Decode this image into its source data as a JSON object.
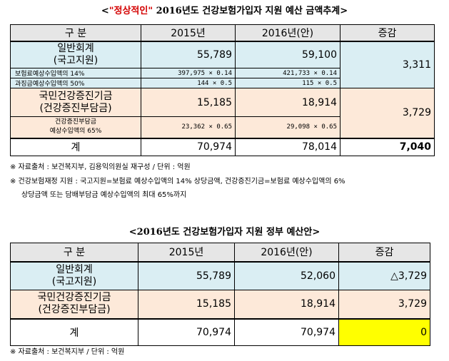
{
  "table1": {
    "title_open": "<",
    "title_red": "\"정상적인\"",
    "title_rest": " 2016년도 건강보험가입자 지원 예산 금액추계>",
    "headers": [
      "구 분",
      "2015년",
      "2016년(안)",
      "증감"
    ],
    "general_line1": "일반회계",
    "general_line2": "(국고지원)",
    "general_2015": "55,789",
    "general_2016": "59,100",
    "general_diff": "3,311",
    "sub1_label": "보험료예상수입액의 14%",
    "sub1_2015": "397,975 × 0.14",
    "sub1_2016": "421,733 × 0.14",
    "sub2_label": "과징금예상수입액의 50%",
    "sub2_2015": "144 × 0.5",
    "sub2_2016": "115 × 0.5",
    "fund_line1": "국민건강증진기금",
    "fund_line2": "(건강증진부담금)",
    "fund_2015": "15,185",
    "fund_2016": "18,914",
    "fund_diff": "3,729",
    "sub3_label1": "건강증진부담금",
    "sub3_label2": "예상수입액의 65%",
    "sub3_2015": "23,362 × 0.65",
    "sub3_2016": "29,098 × 0.65",
    "total_label": "계",
    "total_2015": "70,974",
    "total_2016": "78,014",
    "total_diff": "7,040"
  },
  "notes1": {
    "n1": "※ 자료출처 : 보건복지부, 김용익의원실 재구성 / 단위 : 억원",
    "n2": "※ 건강보험재정 지원 : 국고지원=보험료 예상수입액의 14% 상당금액, 건강증진기금=보험료 예상수입액의 6%",
    "n3": "상당금액 또는 담배부담금 예상수입액의 최대 65%까지"
  },
  "table2": {
    "title": "<2016년도 건강보험가입자 지원 정부 예산안>",
    "headers": [
      "구 분",
      "2015년",
      "2016년(안)",
      "증감"
    ],
    "general_line1": "일반회계",
    "general_line2": "(국고지원)",
    "general_2015": "55,789",
    "general_2016": "52,060",
    "general_diff": "△3,729",
    "fund_line1": "국민건강증진기금",
    "fund_line2": "(건강증진부담금)",
    "fund_2015": "15,185",
    "fund_2016": "18,914",
    "fund_diff": "3,729",
    "total_label": "계",
    "total_2015": "70,974",
    "total_2016": "70,974",
    "total_diff": "0"
  },
  "notes2": {
    "n1": "※ 자료출처 : 보건복지부 / 단위 : 억원"
  },
  "colors": {
    "general_bg": "#daeef3",
    "fund_bg": "#fde9d9",
    "header_bg": "#e6e6e6",
    "highlight": "#ffff00",
    "title_accent": "#d40000"
  }
}
